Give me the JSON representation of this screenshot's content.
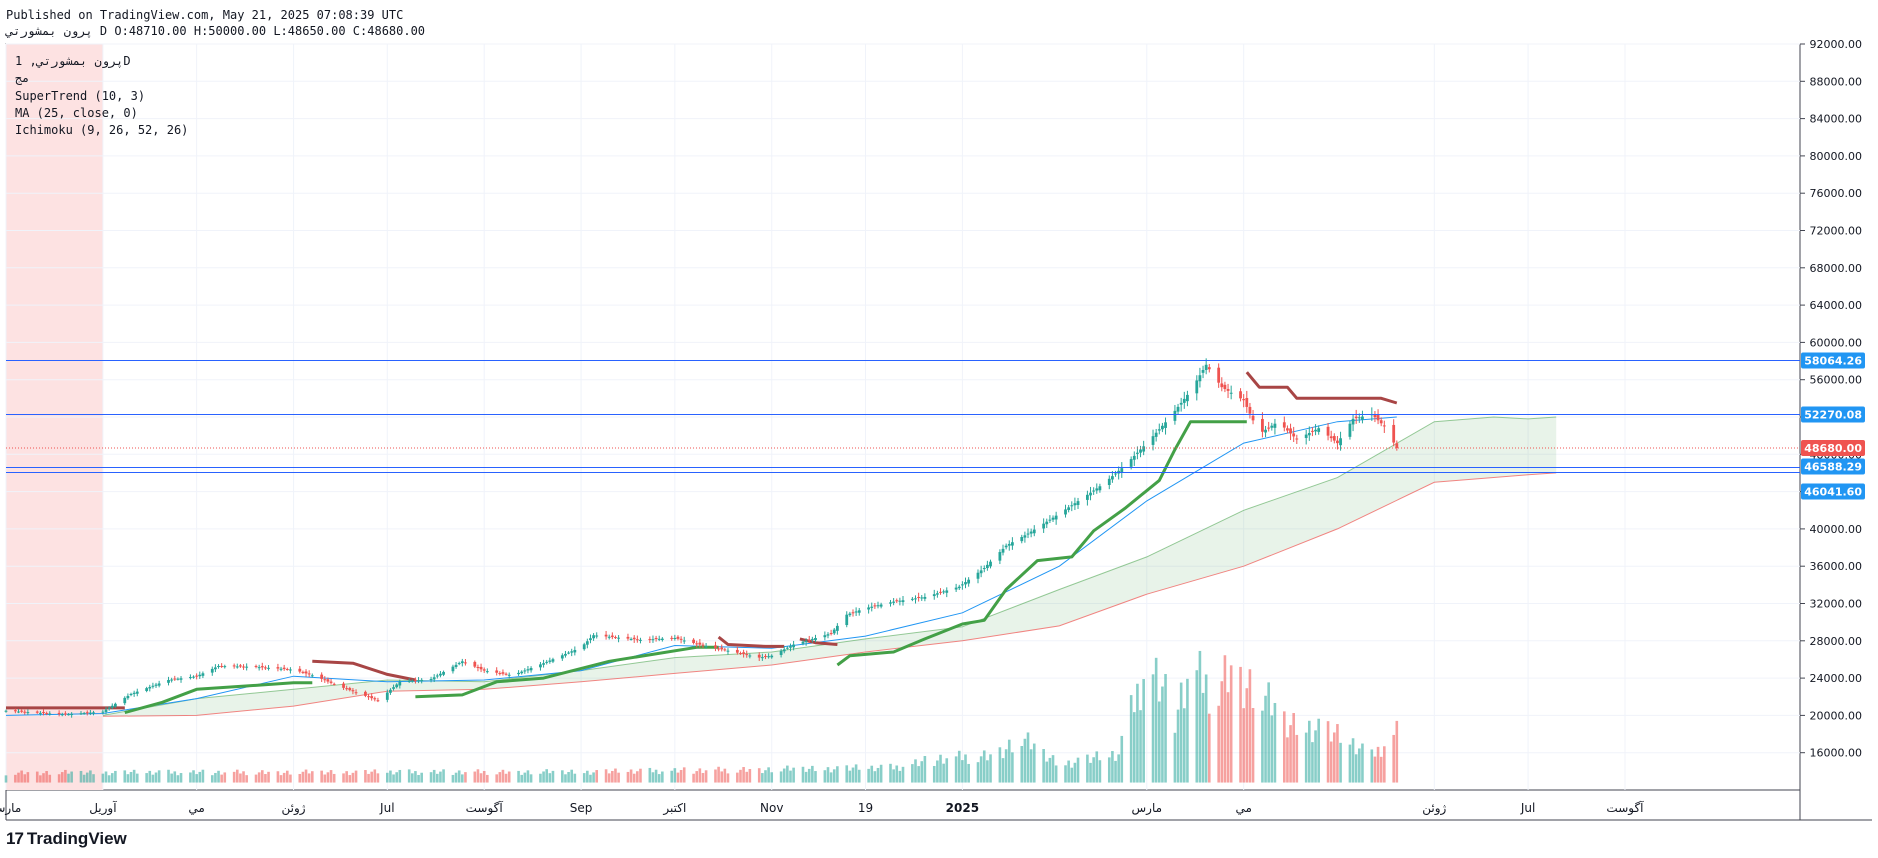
{
  "header": {
    "published": "Published on TradingView.com, May 21, 2025 07:08:39 UTC",
    "symbol_line": "پرون بمشورتي D O:48710.00 H:50000.00 L:48650.00 C:48680.00"
  },
  "legend": {
    "title": "پرون بمشورتي, 1D",
    "exchange": "مج",
    "indicators": [
      "SuperTrend (10, 3)",
      "MA (25, close, 0)",
      "Ichimoku (9, 26, 52, 26)"
    ]
  },
  "footer": {
    "logo": "17",
    "brand": "TradingView"
  },
  "colors": {
    "up": "#26a69a",
    "down": "#ef5350",
    "supertrend_up": "#43a047",
    "supertrend_down": "#a84545",
    "ma": "#2196f3",
    "hline": "#2962ff",
    "grid": "#f0f3fa",
    "highlight": "#fde2e2"
  },
  "chart_data": {
    "type": "candlestick",
    "y_axis": {
      "min": 12000,
      "max": 92000,
      "ticks": [
        16000,
        20000,
        24000,
        28000,
        32000,
        36000,
        40000,
        44000,
        48000,
        52000,
        56000,
        60000,
        64000,
        68000,
        72000,
        76000,
        80000,
        84000,
        88000,
        92000
      ],
      "tick_labels": [
        "16000.00",
        "20000.00",
        "24000.00",
        "28000.00",
        "32000.00",
        "36000.00",
        "40000.00",
        "44000.00",
        "48000.00",
        "52000.00",
        "56000.00",
        "60000.00",
        "64000.00",
        "68000.00",
        "72000.00",
        "76000.00",
        "80000.00",
        "84000.00",
        "88000.00",
        "92000.00"
      ]
    },
    "x_axis": {
      "start": "2024-03-01",
      "end": "2025-09-26",
      "ticks": [
        {
          "date": "2024-03-01",
          "label": "مارس"
        },
        {
          "date": "2024-04-01",
          "label": "آوريل"
        },
        {
          "date": "2024-05-01",
          "label": "مي"
        },
        {
          "date": "2024-06-01",
          "label": "ژوئن"
        },
        {
          "date": "2024-07-01",
          "label": "Jul"
        },
        {
          "date": "2024-08-01",
          "label": "آگوست"
        },
        {
          "date": "2024-09-01",
          "label": "Sep"
        },
        {
          "date": "2024-10-01",
          "label": "اکتبر"
        },
        {
          "date": "2024-11-01",
          "label": "Nov"
        },
        {
          "date": "2024-12-01",
          "label": "19"
        },
        {
          "date": "2025-01-01",
          "label": "2025"
        },
        {
          "date": "2025-03-01",
          "label": "مارس"
        },
        {
          "date": "2025-04-01",
          "label": "مي"
        },
        {
          "date": "2025-06-01",
          "label": "ژوئن"
        },
        {
          "date": "2025-07-01",
          "label": "Jul"
        },
        {
          "date": "2025-08-01",
          "label": "آگوست"
        }
      ]
    },
    "highlight_region": {
      "start": "2024-03-01",
      "end": "2024-04-01"
    },
    "horizontal_lines": [
      {
        "value": 58064.26,
        "label": "58064.26",
        "color": "#2962ff"
      },
      {
        "value": 52270.08,
        "label": "52270.08",
        "color": "#2962ff"
      },
      {
        "value": 46588.29,
        "label": "46588.29",
        "color": "#2962ff"
      },
      {
        "value": 46041.6,
        "label": "46041.60",
        "color": "#2962ff"
      }
    ],
    "last_price": {
      "value": 48680.0,
      "label": "48680.00",
      "color": "#ef5350"
    },
    "price_path": [
      [
        "2024-03-01",
        20500
      ],
      [
        "2024-03-20",
        20100
      ],
      [
        "2024-04-01",
        20400
      ],
      [
        "2024-04-10",
        22300
      ],
      [
        "2024-04-22",
        23800
      ],
      [
        "2024-05-01",
        24200
      ],
      [
        "2024-05-08",
        25300
      ],
      [
        "2024-05-20",
        25200
      ],
      [
        "2024-06-01",
        24900
      ],
      [
        "2024-06-08",
        24200
      ],
      [
        "2024-06-15",
        23200
      ],
      [
        "2024-06-28",
        21600
      ],
      [
        "2024-07-05",
        23600
      ],
      [
        "2024-07-15",
        23900
      ],
      [
        "2024-07-25",
        25800
      ],
      [
        "2024-08-01",
        24800
      ],
      [
        "2024-08-10",
        24300
      ],
      [
        "2024-08-20",
        25600
      ],
      [
        "2024-09-01",
        27300
      ],
      [
        "2024-09-05",
        28600
      ],
      [
        "2024-09-20",
        28100
      ],
      [
        "2024-10-01",
        28300
      ],
      [
        "2024-10-10",
        27500
      ],
      [
        "2024-10-20",
        26800
      ],
      [
        "2024-10-28",
        26200
      ],
      [
        "2024-11-01",
        26400
      ],
      [
        "2024-11-08",
        27600
      ],
      [
        "2024-11-20",
        28800
      ],
      [
        "2024-11-25",
        30800
      ],
      [
        "2024-12-01",
        31500
      ],
      [
        "2024-12-10",
        32200
      ],
      [
        "2024-12-20",
        32700
      ],
      [
        "2024-12-31",
        33800
      ],
      [
        "2025-01-08",
        35800
      ],
      [
        "2025-01-15",
        38200
      ],
      [
        "2025-01-22",
        39500
      ],
      [
        "2025-01-30",
        41200
      ],
      [
        "2025-02-08",
        43200
      ],
      [
        "2025-02-15",
        44800
      ],
      [
        "2025-02-22",
        46800
      ],
      [
        "2025-03-01",
        49200
      ],
      [
        "2025-03-08",
        51800
      ],
      [
        "2025-03-15",
        54800
      ],
      [
        "2025-03-20",
        57600
      ],
      [
        "2025-03-25",
        55200
      ],
      [
        "2025-04-01",
        53800
      ],
      [
        "2025-04-06",
        50200
      ],
      [
        "2025-04-12",
        51500
      ],
      [
        "2025-04-18",
        49600
      ],
      [
        "2025-04-25",
        50800
      ],
      [
        "2025-05-01",
        49200
      ],
      [
        "2025-05-06",
        51800
      ],
      [
        "2025-05-12",
        52300
      ],
      [
        "2025-05-16",
        51000
      ],
      [
        "2025-05-20",
        48680
      ]
    ],
    "supertrend": [
      {
        "trend": "down",
        "points": [
          [
            "2024-03-01",
            20800
          ],
          [
            "2024-04-08",
            20800
          ]
        ]
      },
      {
        "trend": "up",
        "points": [
          [
            "2024-04-08",
            20300
          ],
          [
            "2024-04-20",
            21400
          ],
          [
            "2024-05-01",
            22800
          ],
          [
            "2024-06-01",
            23500
          ],
          [
            "2024-06-07",
            23500
          ]
        ]
      },
      {
        "trend": "down",
        "points": [
          [
            "2024-06-07",
            25800
          ],
          [
            "2024-06-20",
            25600
          ],
          [
            "2024-07-01",
            24400
          ],
          [
            "2024-07-10",
            23800
          ]
        ]
      },
      {
        "trend": "up",
        "points": [
          [
            "2024-07-10",
            22000
          ],
          [
            "2024-07-25",
            22200
          ],
          [
            "2024-08-05",
            23600
          ],
          [
            "2024-08-20",
            24000
          ],
          [
            "2024-09-10",
            25800
          ],
          [
            "2024-10-08",
            27300
          ],
          [
            "2024-10-15",
            27300
          ]
        ]
      },
      {
        "trend": "down",
        "points": [
          [
            "2024-10-15",
            28400
          ],
          [
            "2024-10-18",
            27600
          ],
          [
            "2024-10-30",
            27400
          ],
          [
            "2024-11-05",
            27400
          ]
        ]
      },
      {
        "trend": "down",
        "points": [
          [
            "2024-11-10",
            28200
          ],
          [
            "2024-11-15",
            27800
          ],
          [
            "2024-11-22",
            27600
          ]
        ]
      },
      {
        "trend": "up",
        "points": [
          [
            "2024-11-22",
            25400
          ],
          [
            "2024-11-26",
            26400
          ],
          [
            "2024-12-10",
            26800
          ],
          [
            "2024-12-20",
            28200
          ],
          [
            "2025-01-01",
            29800
          ],
          [
            "2025-01-08",
            30200
          ],
          [
            "2025-01-15",
            33500
          ],
          [
            "2025-01-25",
            36600
          ],
          [
            "2025-02-05",
            37000
          ],
          [
            "2025-02-12",
            39800
          ],
          [
            "2025-02-22",
            42200
          ],
          [
            "2025-03-05",
            45200
          ],
          [
            "2025-03-10",
            48500
          ],
          [
            "2025-03-15",
            51500
          ],
          [
            "2025-04-02",
            51500
          ]
        ]
      },
      {
        "trend": "down",
        "points": [
          [
            "2025-04-02",
            56800
          ],
          [
            "2025-04-06",
            55200
          ],
          [
            "2025-04-15",
            55200
          ],
          [
            "2025-04-18",
            54000
          ],
          [
            "2025-05-15",
            54000
          ],
          [
            "2025-05-20",
            53500
          ]
        ]
      }
    ],
    "moving_average": [
      [
        "2024-03-01",
        20000
      ],
      [
        "2024-04-01",
        20200
      ],
      [
        "2024-05-01",
        21800
      ],
      [
        "2024-06-01",
        24200
      ],
      [
        "2024-07-01",
        23600
      ],
      [
        "2024-08-01",
        23800
      ],
      [
        "2024-09-01",
        24800
      ],
      [
        "2024-10-01",
        27500
      ],
      [
        "2024-11-01",
        27200
      ],
      [
        "2024-12-01",
        28500
      ],
      [
        "2025-01-01",
        31000
      ],
      [
        "2025-02-01",
        36000
      ],
      [
        "2025-03-01",
        43000
      ],
      [
        "2025-04-01",
        49200
      ],
      [
        "2025-05-01",
        51500
      ],
      [
        "2025-05-20",
        52000
      ]
    ],
    "ichimoku_cloud": {
      "span_a": [
        [
          "2024-04-01",
          20000
        ],
        [
          "2024-05-01",
          21800
        ],
        [
          "2024-06-01",
          22800
        ],
        [
          "2024-07-01",
          23800
        ],
        [
          "2024-08-01",
          23600
        ],
        [
          "2024-09-01",
          24800
        ],
        [
          "2024-10-01",
          26200
        ],
        [
          "2024-11-01",
          26800
        ],
        [
          "2024-12-01",
          28200
        ],
        [
          "2025-01-01",
          29500
        ],
        [
          "2025-02-01",
          33500
        ],
        [
          "2025-03-01",
          37000
        ],
        [
          "2025-04-01",
          42000
        ],
        [
          "2025-05-01",
          45500
        ],
        [
          "2025-06-01",
          51500
        ],
        [
          "2025-06-20",
          52000
        ],
        [
          "2025-07-01",
          51800
        ],
        [
          "2025-07-10",
          52000
        ]
      ],
      "span_b": [
        [
          "2024-04-01",
          19900
        ],
        [
          "2024-05-01",
          20000
        ],
        [
          "2024-06-01",
          21000
        ],
        [
          "2024-07-01",
          22600
        ],
        [
          "2024-08-01",
          22800
        ],
        [
          "2024-09-01",
          23600
        ],
        [
          "2024-10-01",
          24500
        ],
        [
          "2024-11-01",
          25400
        ],
        [
          "2024-12-01",
          26800
        ],
        [
          "2025-01-01",
          28000
        ],
        [
          "2025-02-01",
          29600
        ],
        [
          "2025-03-01",
          33000
        ],
        [
          "2025-04-01",
          36000
        ],
        [
          "2025-05-01",
          40000
        ],
        [
          "2025-06-01",
          45000
        ],
        [
          "2025-07-01",
          45800
        ],
        [
          "2025-07-10",
          46000
        ]
      ]
    },
    "volume_panel": {
      "profile": [
        [
          "2024-03-01",
          14200
        ],
        [
          "2024-09-01",
          14300
        ],
        [
          "2024-12-10",
          14900
        ],
        [
          "2024-12-25",
          16200
        ],
        [
          "2025-01-10",
          16600
        ],
        [
          "2025-01-20",
          19000
        ],
        [
          "2025-02-01",
          15400
        ],
        [
          "2025-02-20",
          16800
        ],
        [
          "2025-03-01",
          29800
        ],
        [
          "2025-03-10",
          22500
        ],
        [
          "2025-03-15",
          28800
        ],
        [
          "2025-03-22",
          25800
        ],
        [
          "2025-03-28",
          28600
        ],
        [
          "2025-04-05",
          26000
        ],
        [
          "2025-04-15",
          21000
        ],
        [
          "2025-04-25",
          20600
        ],
        [
          "2025-05-05",
          18500
        ],
        [
          "2025-05-12",
          16500
        ],
        [
          "2025-05-20",
          20000
        ]
      ]
    },
    "grid": true
  }
}
